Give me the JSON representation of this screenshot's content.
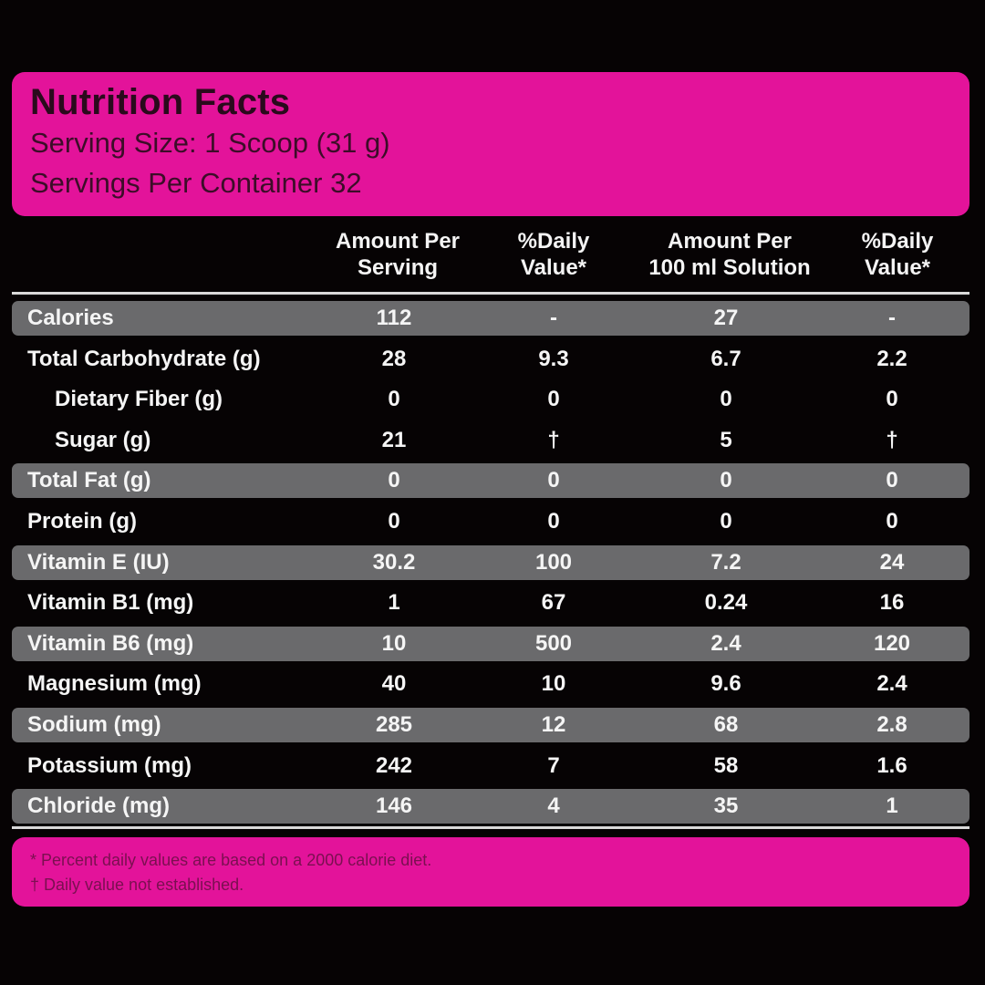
{
  "colors": {
    "background": "#060304",
    "panel_pink": "#e3139a",
    "row_shade": "#6a6a6c",
    "text_light": "#f5f5f5",
    "text_dark": "#2a0a1c"
  },
  "header": {
    "title": "Nutrition Facts",
    "serving_size": "Serving Size: 1 Scoop (31 g)",
    "servings_per_container": "Servings Per Container 32"
  },
  "columns": [
    {
      "line1": "Amount Per",
      "line2": "Serving"
    },
    {
      "line1": "%Daily",
      "line2": "Value*"
    },
    {
      "line1": "Amount Per",
      "line2": "100 ml Solution"
    },
    {
      "line1": "%Daily",
      "line2": "Value*"
    }
  ],
  "rows": [
    {
      "label": "Calories",
      "per_serving": "112",
      "dv_serving": "-",
      "per_100ml": "27",
      "dv_100ml": "-"
    },
    {
      "label": "Total Carbohydrate (g)",
      "per_serving": "28",
      "dv_serving": "9.3",
      "per_100ml": "6.7",
      "dv_100ml": "2.2"
    },
    {
      "label": "Dietary Fiber (g)",
      "per_serving": "0",
      "dv_serving": "0",
      "per_100ml": "0",
      "dv_100ml": "0"
    },
    {
      "label": "Sugar (g)",
      "per_serving": "21",
      "dv_serving": "†",
      "per_100ml": "5",
      "dv_100ml": "†"
    },
    {
      "label": "Total Fat (g)",
      "per_serving": "0",
      "dv_serving": "0",
      "per_100ml": "0",
      "dv_100ml": "0"
    },
    {
      "label": "Protein (g)",
      "per_serving": "0",
      "dv_serving": "0",
      "per_100ml": "0",
      "dv_100ml": "0"
    },
    {
      "label": "Vitamin E (IU)",
      "per_serving": "30.2",
      "dv_serving": "100",
      "per_100ml": "7.2",
      "dv_100ml": "24"
    },
    {
      "label": "Vitamin B1 (mg)",
      "per_serving": "1",
      "dv_serving": "67",
      "per_100ml": "0.24",
      "dv_100ml": "16"
    },
    {
      "label": "Vitamin B6 (mg)",
      "per_serving": "10",
      "dv_serving": "500",
      "per_100ml": "2.4",
      "dv_100ml": "120"
    },
    {
      "label": "Magnesium (mg)",
      "per_serving": "40",
      "dv_serving": "10",
      "per_100ml": "9.6",
      "dv_100ml": "2.4"
    },
    {
      "label": "Sodium (mg)",
      "per_serving": "285",
      "dv_serving": "12",
      "per_100ml": "68",
      "dv_100ml": "2.8"
    },
    {
      "label": "Potassium (mg)",
      "per_serving": "242",
      "dv_serving": "7",
      "per_100ml": "58",
      "dv_100ml": "1.6"
    },
    {
      "label": "Chloride (mg)",
      "per_serving": "146",
      "dv_serving": "4",
      "per_100ml": "35",
      "dv_100ml": "1"
    }
  ],
  "footer": {
    "note1": "* Percent daily values are based on a 2000 calorie diet.",
    "note2": "† Daily value not established."
  }
}
